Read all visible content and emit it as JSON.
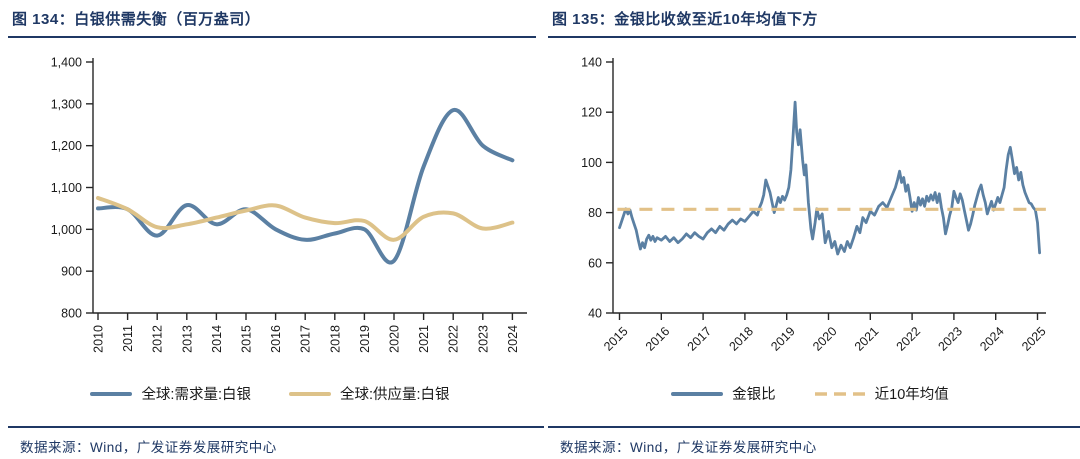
{
  "colors": {
    "navy": "#1f3864",
    "demand_blue": "#5b80a3",
    "supply_tan": "#ddc289",
    "mean_dash_tan": "#e2c188",
    "axis": "#262626",
    "tick_text": "#1a1a1a"
  },
  "panels": [
    {
      "title": "图 134：白银供需失衡（百万盎司）",
      "source": "数据来源：Wind，广发证券发展研究中心",
      "legend": [
        {
          "label": "全球:需求量:白银",
          "style": "solid",
          "color": "#5b80a3"
        },
        {
          "label": "全球:供应量:白银",
          "style": "solid",
          "color": "#ddc289"
        }
      ]
    },
    {
      "title": "图 135：金银比收敛至近10年均值下方",
      "source": "数据来源：Wind，广发证券发展研究中心",
      "legend": [
        {
          "label": "金银比",
          "style": "solid",
          "color": "#5b80a3"
        },
        {
          "label": "近10年均值",
          "style": "dashed",
          "color": "#e2c188"
        }
      ]
    }
  ],
  "chart_data": [
    {
      "type": "line",
      "title": "白银供需失衡（百万盎司）",
      "categories": [
        2010,
        2011,
        2012,
        2013,
        2014,
        2015,
        2016,
        2017,
        2018,
        2019,
        2020,
        2021,
        2022,
        2023,
        2024
      ],
      "series": [
        {
          "name": "全球:需求量:白银",
          "color": "#5b80a3",
          "width": 4,
          "smooth": true,
          "values": [
            1050,
            1048,
            985,
            1058,
            1012,
            1048,
            1000,
            975,
            990,
            1000,
            925,
            1150,
            1285,
            1200,
            1165
          ]
        },
        {
          "name": "全球:供应量:白银",
          "color": "#ddc289",
          "width": 4,
          "smooth": true,
          "values": [
            1075,
            1048,
            1005,
            1012,
            1028,
            1045,
            1057,
            1028,
            1015,
            1020,
            975,
            1030,
            1038,
            1002,
            1016
          ]
        }
      ],
      "xticks": [
        2010,
        2011,
        2012,
        2013,
        2014,
        2015,
        2016,
        2017,
        2018,
        2019,
        2020,
        2021,
        2022,
        2023,
        2024
      ],
      "ylim": [
        800,
        1400
      ],
      "yticks": [
        800,
        900,
        1000,
        1100,
        1200,
        1300,
        1400
      ],
      "ytick_labels": [
        "800",
        "900",
        "1,000",
        "1,100",
        "1,200",
        "1,300",
        "1,400"
      ],
      "xlabel": "",
      "ylabel": "",
      "grid": false,
      "legend_position": "bottom"
    },
    {
      "type": "line",
      "title": "金银比收敛至近10年均值下方",
      "xlim": [
        2014.95,
        2025.3
      ],
      "xticks": [
        2015,
        2016,
        2017,
        2018,
        2019,
        2020,
        2021,
        2022,
        2023,
        2024,
        2025
      ],
      "ylim": [
        40,
        140
      ],
      "yticks": [
        40,
        60,
        80,
        100,
        120,
        140
      ],
      "ytick_labels": [
        "40",
        "60",
        "80",
        "100",
        "120",
        "140"
      ],
      "xlabel": "",
      "ylabel": "",
      "grid": false,
      "legend_position": "bottom",
      "series": [
        {
          "name": "金银比",
          "color": "#5b80a3",
          "width": 2.8,
          "points": [
            [
              2015.0,
              74
            ],
            [
              2015.05,
              76.5
            ],
            [
              2015.1,
              79
            ],
            [
              2015.15,
              81.5
            ],
            [
              2015.2,
              79.5
            ],
            [
              2015.25,
              81
            ],
            [
              2015.3,
              78
            ],
            [
              2015.35,
              75.5
            ],
            [
              2015.4,
              73
            ],
            [
              2015.45,
              69
            ],
            [
              2015.5,
              65.5
            ],
            [
              2015.55,
              68
            ],
            [
              2015.6,
              66
            ],
            [
              2015.65,
              69.5
            ],
            [
              2015.7,
              71
            ],
            [
              2015.75,
              69
            ],
            [
              2015.8,
              70.5
            ],
            [
              2015.85,
              68.5
            ],
            [
              2015.9,
              70
            ],
            [
              2016.0,
              69
            ],
            [
              2016.1,
              70.5
            ],
            [
              2016.2,
              68.5
            ],
            [
              2016.3,
              70
            ],
            [
              2016.4,
              68
            ],
            [
              2016.5,
              69.5
            ],
            [
              2016.6,
              71.5
            ],
            [
              2016.7,
              70
            ],
            [
              2016.8,
              72
            ],
            [
              2016.9,
              70.5
            ],
            [
              2017.0,
              69.5
            ],
            [
              2017.1,
              72
            ],
            [
              2017.2,
              73.5
            ],
            [
              2017.3,
              72
            ],
            [
              2017.4,
              74.5
            ],
            [
              2017.5,
              73
            ],
            [
              2017.6,
              75.5
            ],
            [
              2017.7,
              77
            ],
            [
              2017.8,
              75.5
            ],
            [
              2017.9,
              77.5
            ],
            [
              2018.0,
              76.5
            ],
            [
              2018.1,
              78.5
            ],
            [
              2018.2,
              80.5
            ],
            [
              2018.3,
              79
            ],
            [
              2018.35,
              82
            ],
            [
              2018.4,
              84
            ],
            [
              2018.45,
              87
            ],
            [
              2018.5,
              93
            ],
            [
              2018.55,
              90.5
            ],
            [
              2018.6,
              88
            ],
            [
              2018.65,
              84
            ],
            [
              2018.7,
              80
            ],
            [
              2018.75,
              83
            ],
            [
              2018.8,
              86
            ],
            [
              2018.85,
              84
            ],
            [
              2018.9,
              86.5
            ],
            [
              2018.95,
              85
            ],
            [
              2019.0,
              87
            ],
            [
              2019.05,
              90
            ],
            [
              2019.1,
              97
            ],
            [
              2019.15,
              110
            ],
            [
              2019.2,
              124
            ],
            [
              2019.24,
              112
            ],
            [
              2019.28,
              107
            ],
            [
              2019.32,
              113
            ],
            [
              2019.38,
              101
            ],
            [
              2019.42,
              95
            ],
            [
              2019.46,
              99
            ],
            [
              2019.52,
              84
            ],
            [
              2019.58,
              73.5
            ],
            [
              2019.62,
              69.5
            ],
            [
              2019.68,
              76
            ],
            [
              2019.72,
              81.5
            ],
            [
              2019.78,
              77.5
            ],
            [
              2019.85,
              79.5
            ],
            [
              2019.92,
              68
            ],
            [
              2020.0,
              72.5
            ],
            [
              2020.08,
              66
            ],
            [
              2020.15,
              68.5
            ],
            [
              2020.22,
              63.5
            ],
            [
              2020.3,
              67
            ],
            [
              2020.38,
              64.5
            ],
            [
              2020.45,
              68.5
            ],
            [
              2020.52,
              66
            ],
            [
              2020.6,
              70
            ],
            [
              2020.68,
              74.5
            ],
            [
              2020.75,
              72
            ],
            [
              2020.82,
              78
            ],
            [
              2020.9,
              76
            ],
            [
              2021.0,
              80.5
            ],
            [
              2021.1,
              79
            ],
            [
              2021.2,
              82.5
            ],
            [
              2021.3,
              84
            ],
            [
              2021.4,
              82
            ],
            [
              2021.5,
              86
            ],
            [
              2021.6,
              90
            ],
            [
              2021.65,
              93
            ],
            [
              2021.7,
              96.5
            ],
            [
              2021.75,
              92
            ],
            [
              2021.8,
              94
            ],
            [
              2021.85,
              88.5
            ],
            [
              2021.9,
              91
            ],
            [
              2021.95,
              86
            ],
            [
              2022.0,
              80.5
            ],
            [
              2022.05,
              84
            ],
            [
              2022.1,
              81
            ],
            [
              2022.15,
              86
            ],
            [
              2022.2,
              83
            ],
            [
              2022.25,
              85.5
            ],
            [
              2022.3,
              82.5
            ],
            [
              2022.35,
              86.5
            ],
            [
              2022.4,
              84.5
            ],
            [
              2022.45,
              87
            ],
            [
              2022.5,
              85
            ],
            [
              2022.55,
              88
            ],
            [
              2022.6,
              84
            ],
            [
              2022.65,
              87.5
            ],
            [
              2022.7,
              82
            ],
            [
              2022.75,
              78
            ],
            [
              2022.8,
              71.5
            ],
            [
              2022.85,
              75
            ],
            [
              2022.9,
              79
            ],
            [
              2022.95,
              82
            ],
            [
              2023.0,
              88.5
            ],
            [
              2023.05,
              86
            ],
            [
              2023.1,
              84
            ],
            [
              2023.15,
              87.5
            ],
            [
              2023.2,
              85
            ],
            [
              2023.25,
              81
            ],
            [
              2023.3,
              77
            ],
            [
              2023.35,
              73
            ],
            [
              2023.4,
              75.5
            ],
            [
              2023.45,
              79
            ],
            [
              2023.5,
              83
            ],
            [
              2023.55,
              86
            ],
            [
              2023.6,
              89
            ],
            [
              2023.65,
              91
            ],
            [
              2023.7,
              87
            ],
            [
              2023.75,
              84
            ],
            [
              2023.8,
              79.5
            ],
            [
              2023.85,
              82
            ],
            [
              2023.9,
              84.5
            ],
            [
              2023.95,
              81
            ],
            [
              2024.0,
              83.5
            ],
            [
              2024.05,
              86
            ],
            [
              2024.1,
              84
            ],
            [
              2024.15,
              87
            ],
            [
              2024.2,
              90
            ],
            [
              2024.25,
              97
            ],
            [
              2024.3,
              103
            ],
            [
              2024.35,
              106
            ],
            [
              2024.4,
              101
            ],
            [
              2024.45,
              95.5
            ],
            [
              2024.5,
              98
            ],
            [
              2024.55,
              93
            ],
            [
              2024.6,
              96
            ],
            [
              2024.65,
              91
            ],
            [
              2024.7,
              88
            ],
            [
              2024.75,
              86
            ],
            [
              2024.8,
              84
            ],
            [
              2024.85,
              83.5
            ],
            [
              2024.9,
              82
            ],
            [
              2024.95,
              81
            ],
            [
              2025.0,
              76
            ],
            [
              2025.05,
              64
            ]
          ]
        },
        {
          "name": "近10年均值",
          "color": "#e2c188",
          "width": 3.2,
          "style": "dashed",
          "value": 81.3,
          "x_range": [
            2014.95,
            2025.2
          ]
        }
      ]
    }
  ]
}
